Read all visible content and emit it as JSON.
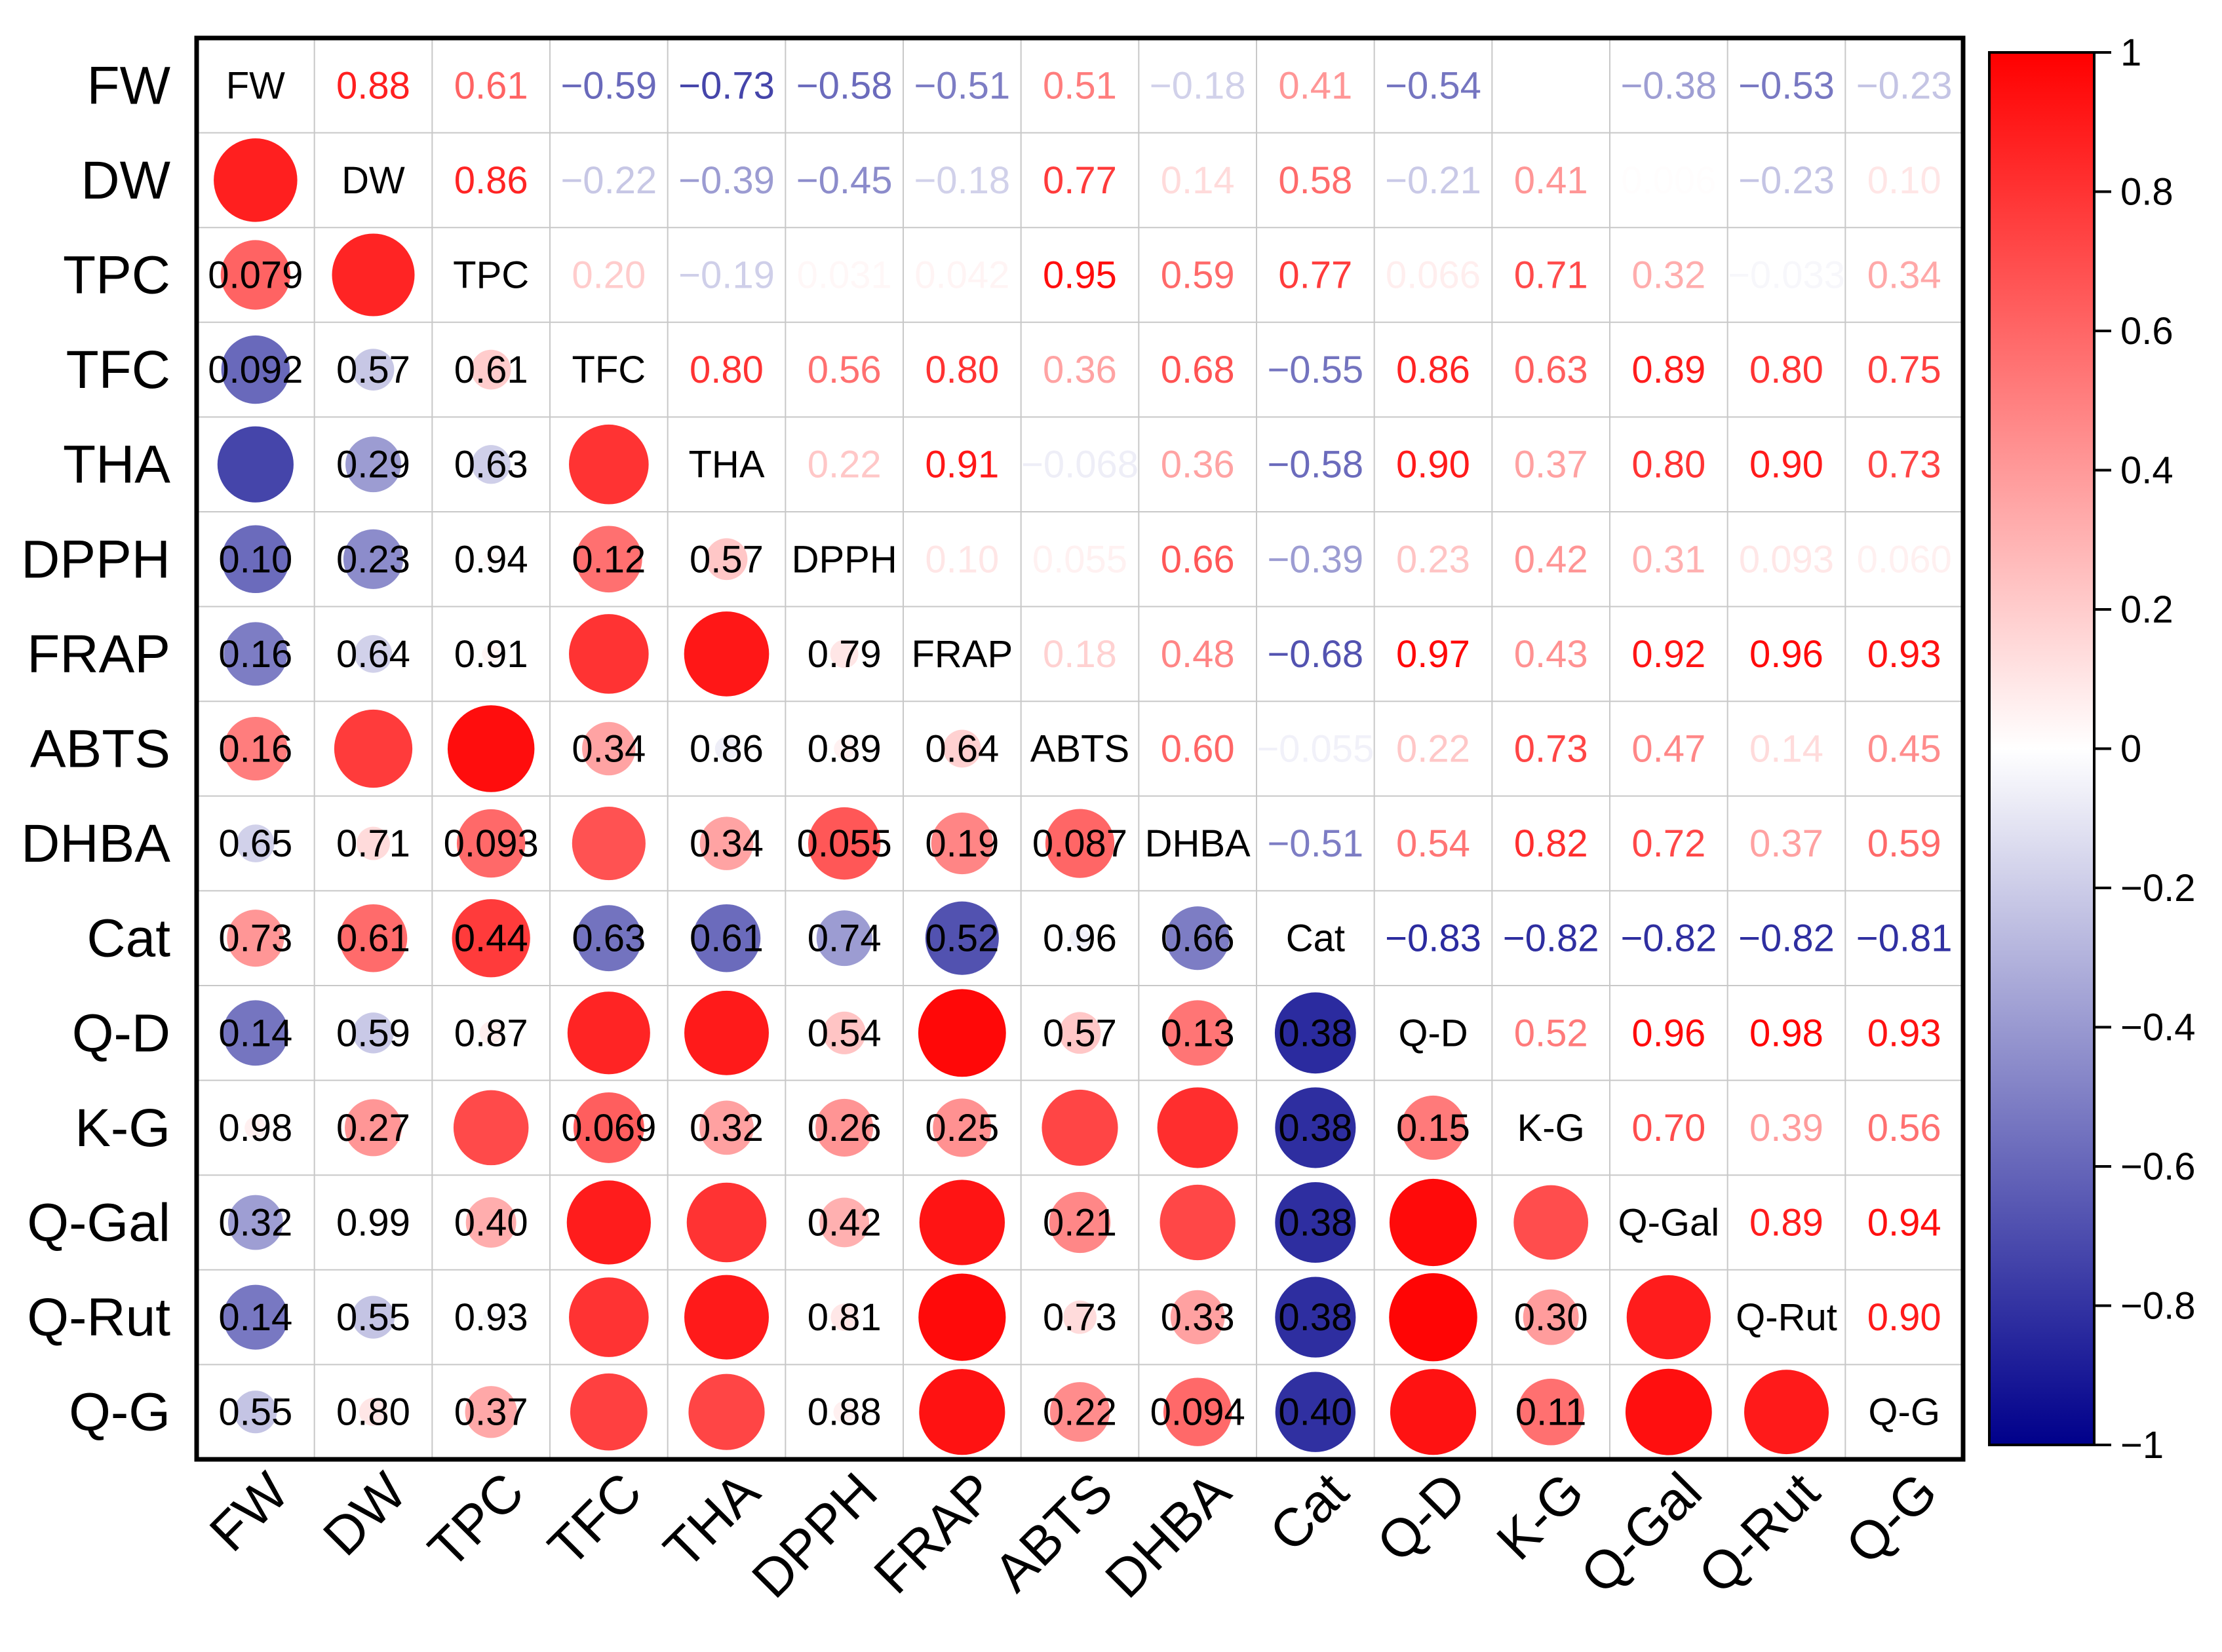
{
  "chart_data": {
    "type": "heatmap",
    "title": "",
    "labels": [
      "FW",
      "DW",
      "TPC",
      "TFC",
      "THA",
      "DPPH",
      "FRAP",
      "ABTS",
      "DHBA",
      "Cat",
      "Q-D",
      "K-G",
      "Q-Gal",
      "Q-Rut",
      "Q-G"
    ],
    "upper_correlations": [
      [
        null,
        0.88,
        0.61,
        -0.59,
        -0.73,
        -0.58,
        -0.51,
        0.51,
        -0.18,
        0.41,
        -0.54,
        0.06,
        -0.38,
        -0.53,
        -0.23
      ],
      [
        null,
        null,
        0.86,
        -0.22,
        -0.39,
        -0.45,
        -0.18,
        0.77,
        0.14,
        0.58,
        -0.21,
        0.41,
        0.006,
        -0.23,
        0.1
      ],
      [
        null,
        null,
        null,
        0.2,
        -0.19,
        0.031,
        0.042,
        0.95,
        0.59,
        0.77,
        0.066,
        0.71,
        0.32,
        -0.033,
        0.34
      ],
      [
        null,
        null,
        null,
        null,
        0.8,
        0.56,
        0.8,
        0.36,
        0.68,
        -0.55,
        0.86,
        0.63,
        0.89,
        0.8,
        0.75
      ],
      [
        null,
        null,
        null,
        null,
        null,
        0.22,
        0.91,
        -0.068,
        0.36,
        -0.58,
        0.9,
        0.37,
        0.8,
        0.9,
        0.73
      ],
      [
        null,
        null,
        null,
        null,
        null,
        null,
        0.1,
        0.055,
        0.66,
        -0.39,
        0.23,
        0.42,
        0.31,
        0.093,
        0.06
      ],
      [
        null,
        null,
        null,
        null,
        null,
        null,
        null,
        0.18,
        0.48,
        -0.68,
        0.97,
        0.43,
        0.92,
        0.96,
        0.93
      ],
      [
        null,
        null,
        null,
        null,
        null,
        null,
        null,
        null,
        0.6,
        -0.055,
        0.22,
        0.73,
        0.47,
        0.14,
        0.45
      ],
      [
        null,
        null,
        null,
        null,
        null,
        null,
        null,
        null,
        null,
        -0.51,
        0.54,
        0.82,
        0.72,
        0.37,
        0.59
      ],
      [
        null,
        null,
        null,
        null,
        null,
        null,
        null,
        null,
        null,
        null,
        -0.83,
        -0.82,
        -0.82,
        -0.82,
        -0.81
      ],
      [
        null,
        null,
        null,
        null,
        null,
        null,
        null,
        null,
        null,
        null,
        null,
        0.52,
        0.96,
        0.98,
        0.93
      ],
      [
        null,
        null,
        null,
        null,
        null,
        null,
        null,
        null,
        null,
        null,
        null,
        null,
        0.7,
        0.39,
        0.56
      ],
      [
        null,
        null,
        null,
        null,
        null,
        null,
        null,
        null,
        null,
        null,
        null,
        null,
        null,
        0.89,
        0.94
      ],
      [
        null,
        null,
        null,
        null,
        null,
        null,
        null,
        null,
        null,
        null,
        null,
        null,
        null,
        null,
        0.9
      ],
      [
        null,
        null,
        null,
        null,
        null,
        null,
        null,
        null,
        null,
        null,
        null,
        null,
        null,
        null,
        null
      ]
    ],
    "upper_text": [
      [
        "",
        "0.88",
        "0.61",
        "−0.59",
        "−0.73",
        "−0.58",
        "−0.51",
        "0.51",
        "−0.18",
        "0.41",
        "−0.54",
        "",
        "−0.38",
        "−0.53",
        "−0.23"
      ],
      [
        "",
        "",
        "0.86",
        "−0.22",
        "−0.39",
        "−0.45",
        "−0.18",
        "0.77",
        "0.14",
        "0.58",
        "−0.21",
        "0.41",
        "0.006",
        "−0.23",
        "0.10"
      ],
      [
        "",
        "",
        "",
        "0.20",
        "−0.19",
        "0.031",
        "0.042",
        "0.95",
        "0.59",
        "0.77",
        "0.066",
        "0.71",
        "0.32",
        "−0.033",
        "0.34"
      ],
      [
        "",
        "",
        "",
        "",
        "0.80",
        "0.56",
        "0.80",
        "0.36",
        "0.68",
        "−0.55",
        "0.86",
        "0.63",
        "0.89",
        "0.80",
        "0.75"
      ],
      [
        "",
        "",
        "",
        "",
        "",
        "0.22",
        "0.91",
        "−0.068",
        "0.36",
        "−0.58",
        "0.90",
        "0.37",
        "0.80",
        "0.90",
        "0.73"
      ],
      [
        "",
        "",
        "",
        "",
        "",
        "",
        "0.10",
        "0.055",
        "0.66",
        "−0.39",
        "0.23",
        "0.42",
        "0.31",
        "0.093",
        "0.060"
      ],
      [
        "",
        "",
        "",
        "",
        "",
        "",
        "",
        "0.18",
        "0.48",
        "−0.68",
        "0.97",
        "0.43",
        "0.92",
        "0.96",
        "0.93"
      ],
      [
        "",
        "",
        "",
        "",
        "",
        "",
        "",
        "",
        "0.60",
        "−0.055",
        "0.22",
        "0.73",
        "0.47",
        "0.14",
        "0.45"
      ],
      [
        "",
        "",
        "",
        "",
        "",
        "",
        "",
        "",
        "",
        "−0.51",
        "0.54",
        "0.82",
        "0.72",
        "0.37",
        "0.59"
      ],
      [
        "",
        "",
        "",
        "",
        "",
        "",
        "",
        "",
        "",
        "",
        "−0.83",
        "−0.82",
        "−0.82",
        "−0.82",
        "−0.81"
      ],
      [
        "",
        "",
        "",
        "",
        "",
        "",
        "",
        "",
        "",
        "",
        "",
        "0.52",
        "0.96",
        "0.98",
        "0.93"
      ],
      [
        "",
        "",
        "",
        "",
        "",
        "",
        "",
        "",
        "",
        "",
        "",
        "",
        "0.70",
        "0.39",
        "0.56"
      ],
      [
        "",
        "",
        "",
        "",
        "",
        "",
        "",
        "",
        "",
        "",
        "",
        "",
        "",
        "0.89",
        "0.94"
      ],
      [
        "",
        "",
        "",
        "",
        "",
        "",
        "",
        "",
        "",
        "",
        "",
        "",
        "",
        "",
        "0.90"
      ],
      [
        "",
        "",
        "",
        "",
        "",
        "",
        "",
        "",
        "",
        "",
        "",
        "",
        "",
        "",
        ""
      ]
    ],
    "lower_pvalue_text": [
      [
        "",
        "",
        "",
        "",
        "",
        "",
        "",
        "",
        "",
        "",
        "",
        "",
        "",
        "",
        ""
      ],
      [
        "",
        "",
        "",
        "",
        "",
        "",
        "",
        "",
        "",
        "",
        "",
        "",
        "",
        "",
        ""
      ],
      [
        "0.079",
        "",
        "",
        "",
        "",
        "",
        "",
        "",
        "",
        "",
        "",
        "",
        "",
        "",
        ""
      ],
      [
        "0.092",
        "0.57",
        "0.61",
        "",
        "",
        "",
        "",
        "",
        "",
        "",
        "",
        "",
        "",
        "",
        ""
      ],
      [
        "",
        "0.29",
        "0.63",
        "",
        "",
        "",
        "",
        "",
        "",
        "",
        "",
        "",
        "",
        "",
        ""
      ],
      [
        "0.10",
        "0.23",
        "0.94",
        "0.12",
        "0.57",
        "",
        "",
        "",
        "",
        "",
        "",
        "",
        "",
        "",
        ""
      ],
      [
        "0.16",
        "0.64",
        "0.91",
        "",
        "",
        "0.79",
        "",
        "",
        "",
        "",
        "",
        "",
        "",
        "",
        ""
      ],
      [
        "0.16",
        "",
        "",
        "0.34",
        "0.86",
        "0.89",
        "0.64",
        "",
        "",
        "",
        "",
        "",
        "",
        "",
        ""
      ],
      [
        "0.65",
        "0.71",
        "0.093",
        "",
        "0.34",
        "0.055",
        "0.19",
        "0.087",
        "",
        "",
        "",
        "",
        "",
        "",
        ""
      ],
      [
        "0.73",
        "0.61",
        "0.44",
        "0.63",
        "0.61",
        "0.74",
        "0.52",
        "0.96",
        "0.66",
        "",
        "",
        "",
        "",
        "",
        ""
      ],
      [
        "0.14",
        "0.59",
        "0.87",
        "",
        "",
        "0.54",
        "",
        "0.57",
        "0.13",
        "0.38",
        "",
        "",
        "",
        "",
        ""
      ],
      [
        "0.98",
        "0.27",
        "",
        "0.069",
        "0.32",
        "0.26",
        "0.25",
        "",
        "",
        "0.38",
        "0.15",
        "",
        "",
        "",
        ""
      ],
      [
        "0.32",
        "0.99",
        "0.40",
        "",
        "",
        "0.42",
        "",
        "0.21",
        "",
        "0.38",
        "",
        "",
        "",
        "",
        ""
      ],
      [
        "0.14",
        "0.55",
        "0.93",
        "",
        "",
        "0.81",
        "",
        "0.73",
        "0.33",
        "0.38",
        "",
        "0.30",
        "",
        "",
        ""
      ],
      [
        "0.55",
        "0.80",
        "0.37",
        "",
        "",
        "0.88",
        "",
        "0.22",
        "0.094",
        "0.40",
        "",
        "0.11",
        "",
        "",
        ""
      ]
    ],
    "colorbar": {
      "min": -1,
      "max": 1,
      "ticks": [
        "1",
        "0.8",
        "0.6",
        "0.4",
        "0.2",
        "0",
        "−0.2",
        "−0.4",
        "−0.6",
        "−0.8",
        "−1"
      ]
    },
    "colors": {
      "positive": "#ff0000",
      "neutral": "#ffffff",
      "negative": "#00008b",
      "grid": "#c8c8c8",
      "frame": "#000000"
    }
  }
}
